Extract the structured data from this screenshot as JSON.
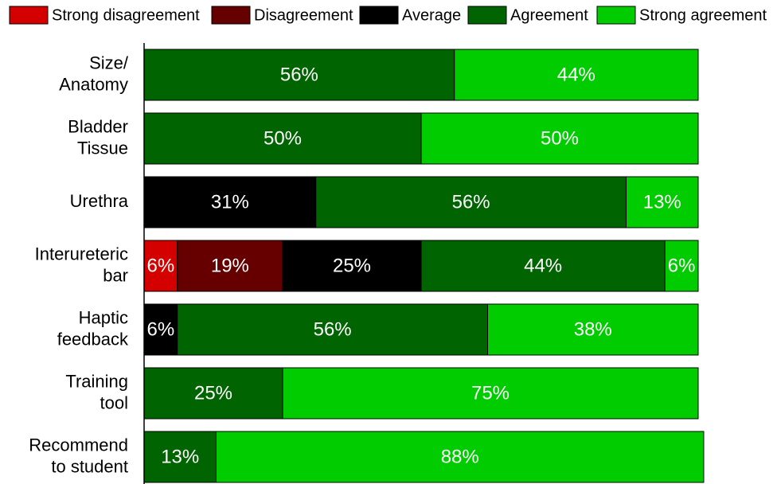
{
  "chart_data": {
    "type": "stacked-barh",
    "categories": [
      [
        "Size/",
        "Anatomy"
      ],
      [
        "Bladder",
        "Tissue"
      ],
      [
        "Urethra"
      ],
      [
        "Interureteric",
        "bar"
      ],
      [
        "Haptic",
        "feedback"
      ],
      [
        "Training",
        "tool"
      ],
      [
        "Recommend",
        "to student"
      ]
    ],
    "series": [
      {
        "name": "Strong disagreement",
        "color": "#d40000",
        "values": [
          null,
          null,
          null,
          6,
          null,
          null,
          null
        ],
        "value_labels": [
          null,
          null,
          null,
          "6%",
          null,
          null,
          null
        ]
      },
      {
        "name": "Disagreement",
        "color": "#660000",
        "values": [
          null,
          null,
          null,
          19,
          null,
          null,
          null
        ],
        "value_labels": [
          null,
          null,
          null,
          "19%",
          null,
          null,
          null
        ]
      },
      {
        "name": "Average",
        "color": "#000000",
        "values": [
          null,
          null,
          31,
          25,
          6,
          null,
          null
        ],
        "value_labels": [
          null,
          null,
          "31%",
          "25%",
          "6%",
          null,
          null
        ]
      },
      {
        "name": "Agreement",
        "color": "#006400",
        "values": [
          56,
          50,
          56,
          44,
          56,
          25,
          13
        ],
        "value_labels": [
          "56%",
          "50%",
          "56%",
          "44%",
          "56%",
          "25%",
          "13%"
        ]
      },
      {
        "name": "Strong agreement",
        "color": "#00cc00",
        "values": [
          44,
          50,
          13,
          6,
          38,
          75,
          88
        ],
        "value_labels": [
          "44%",
          "50%",
          "13%",
          "6%",
          "38%",
          "75%",
          "88%"
        ]
      }
    ],
    "xlim": [
      0,
      100
    ],
    "legend": "top"
  }
}
